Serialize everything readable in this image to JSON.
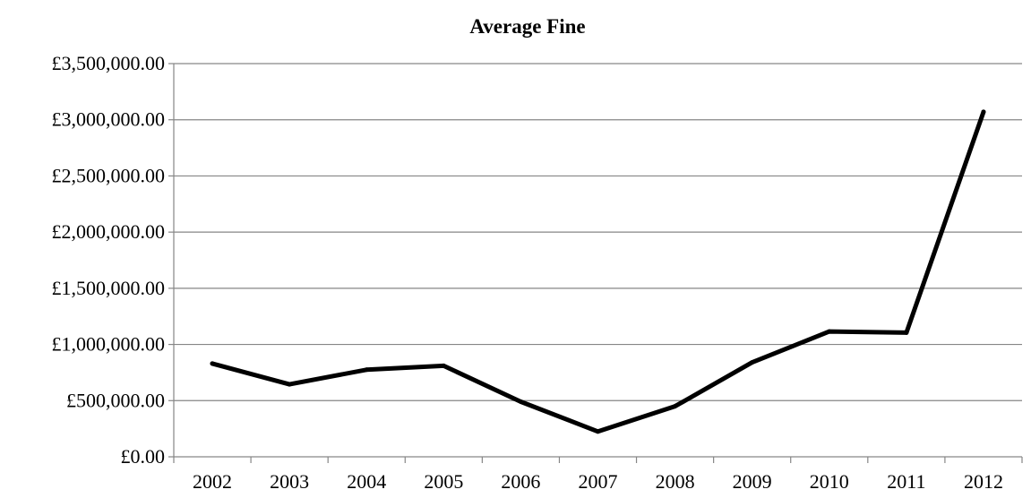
{
  "chart_data": {
    "type": "line",
    "title": "Average Fine",
    "xlabel": "",
    "ylabel": "",
    "categories": [
      "2002",
      "2003",
      "2004",
      "2005",
      "2006",
      "2007",
      "2008",
      "2009",
      "2010",
      "2011",
      "2012"
    ],
    "series": [
      {
        "values": [
          830000,
          645000,
          775000,
          810000,
          490000,
          225000,
          450000,
          840000,
          1115000,
          1105000,
          3070000
        ]
      }
    ],
    "ylim": [
      0,
      3500000
    ],
    "yticks": [
      0,
      500000,
      1000000,
      1500000,
      2000000,
      2500000,
      3000000,
      3500000
    ],
    "ytick_labels": [
      "£0.00",
      "£500,000.00",
      "£1,000,000.00",
      "£1,500,000.00",
      "£2,000,000.00",
      "£2,500,000.00",
      "£3,000,000.00",
      "£3,500,000.00"
    ],
    "grid": true,
    "legend": "none",
    "colors": {
      "line": "#000000",
      "grid": "#868686",
      "axis": "#868686"
    }
  }
}
